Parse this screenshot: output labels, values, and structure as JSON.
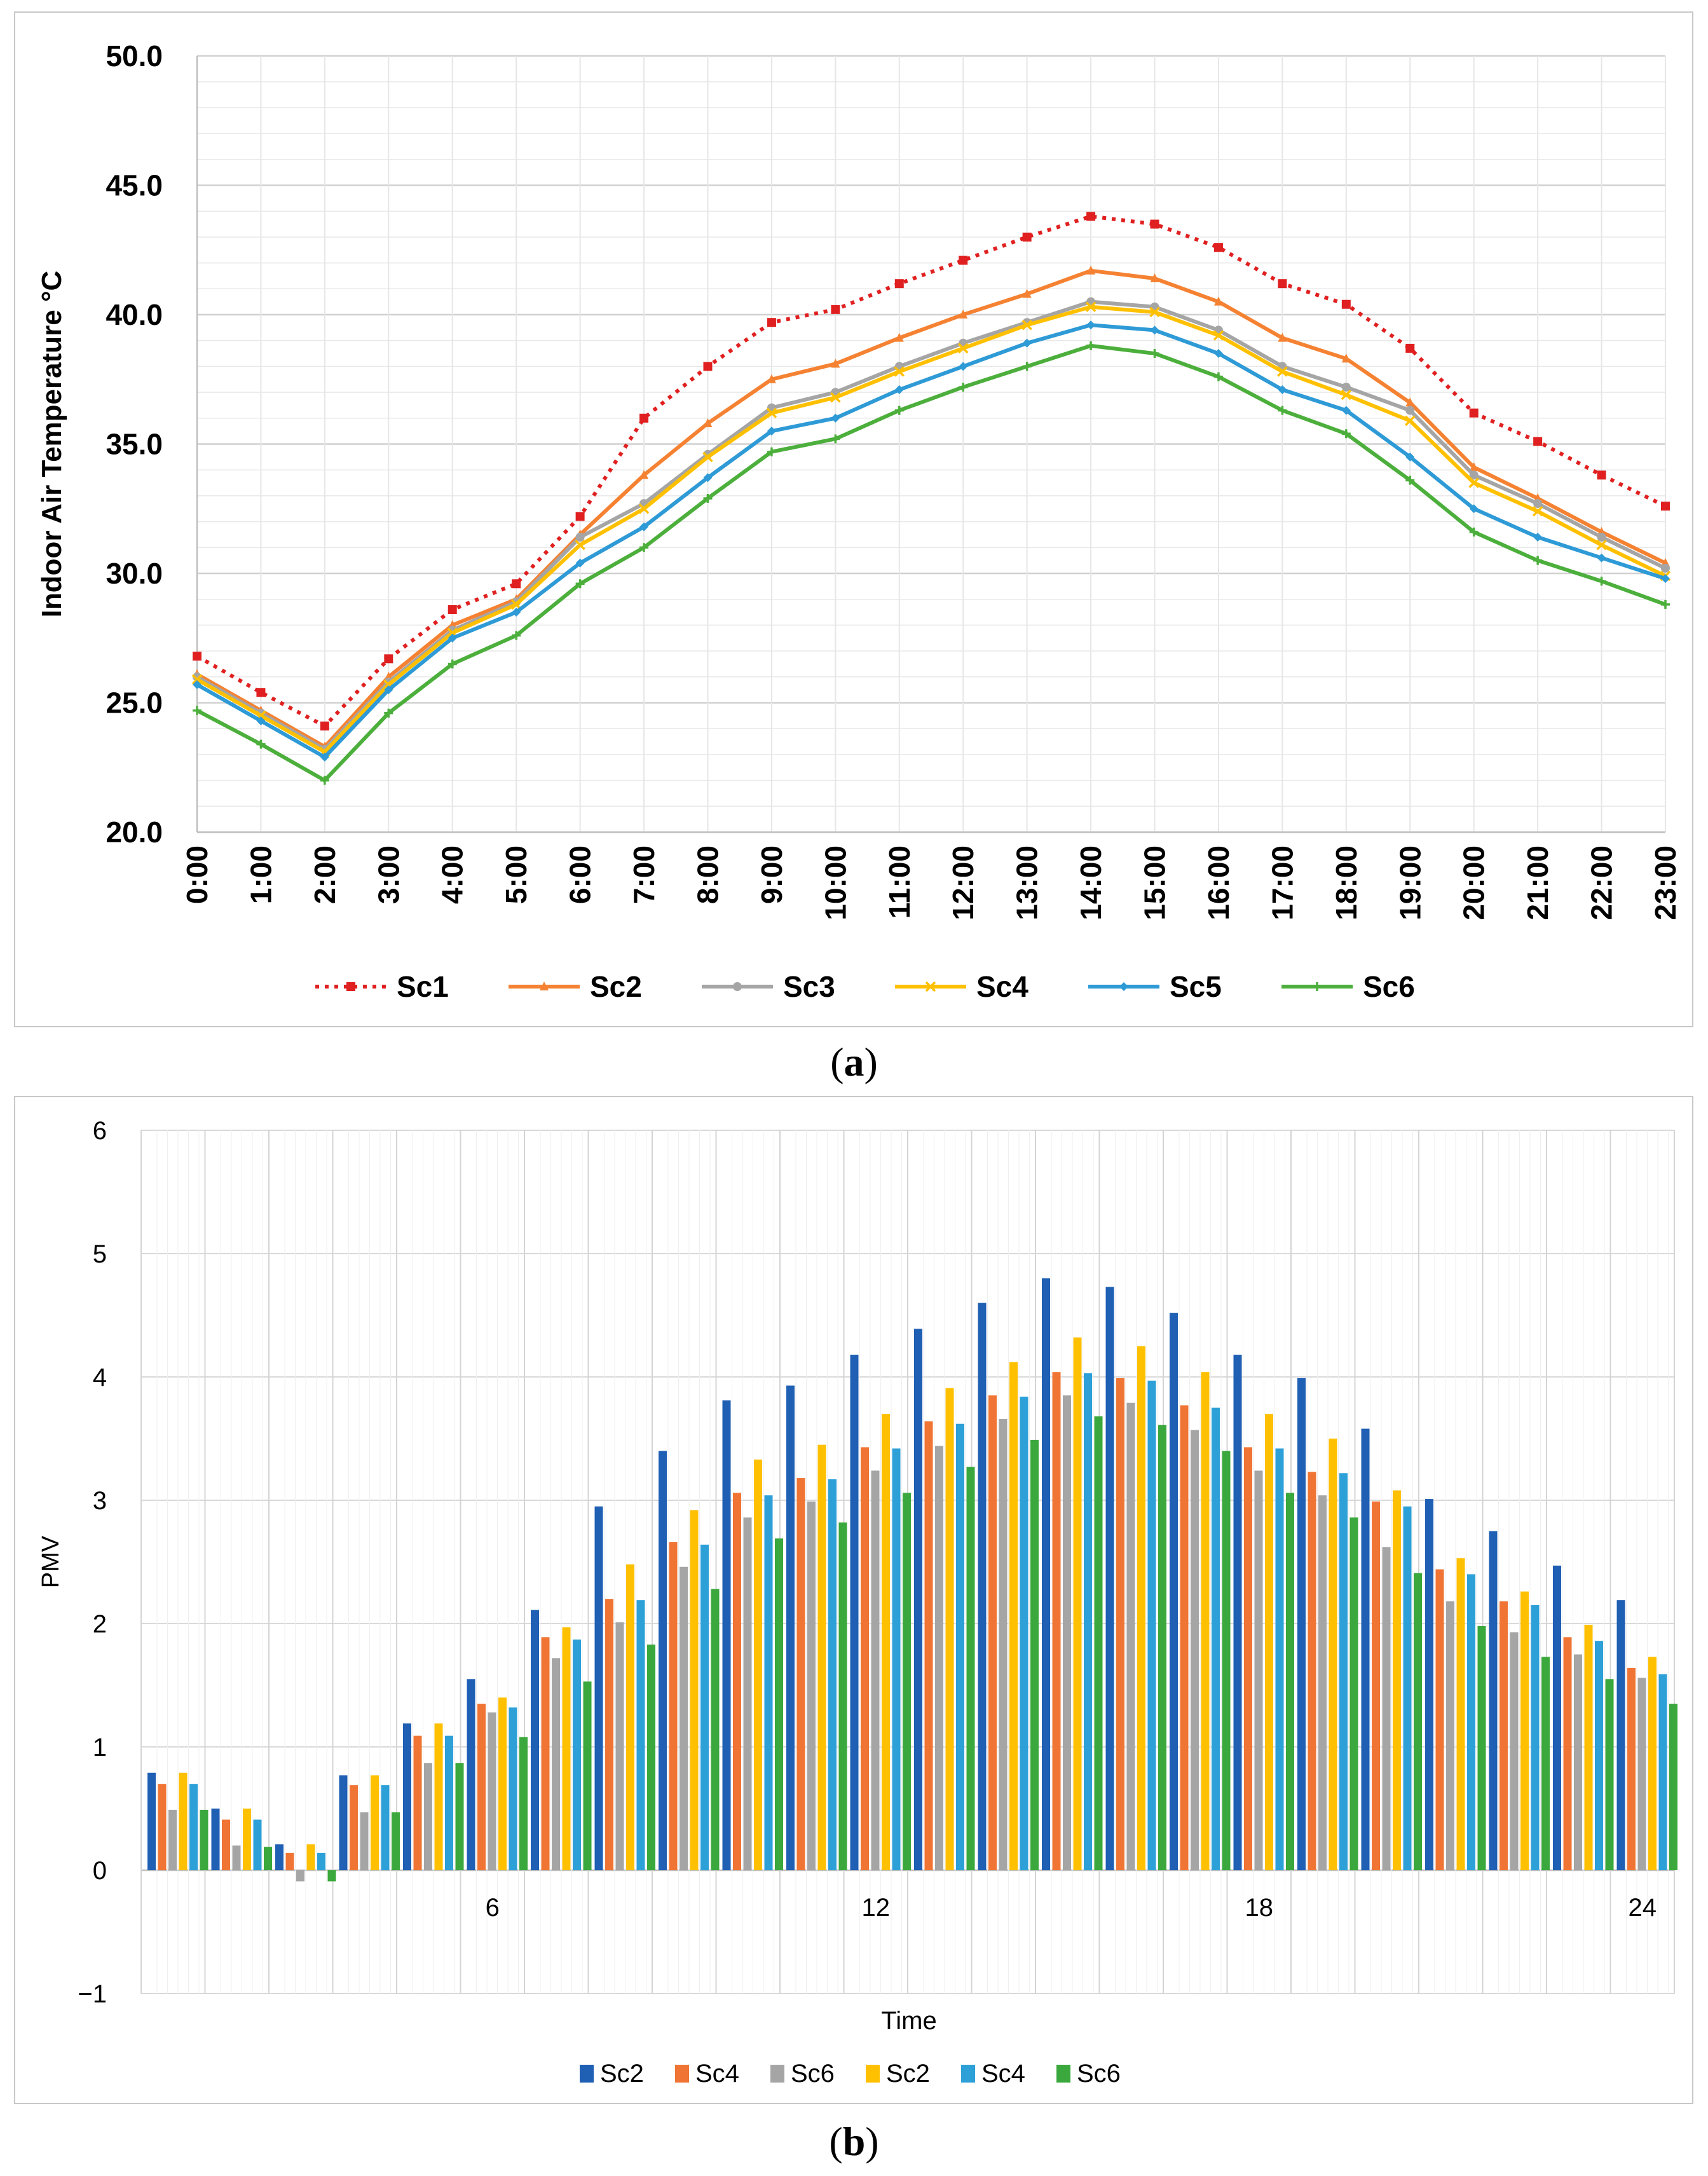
{
  "captions": {
    "a": "a",
    "b": "b"
  },
  "chart_data": [
    {
      "type": "line",
      "title": "",
      "xlabel": "",
      "ylabel": "Indoor Air Temperature °C",
      "ylim": [
        20,
        50
      ],
      "yticks": [
        "20.0",
        "25.0",
        "30.0",
        "35.0",
        "40.0",
        "45.0",
        "50.0"
      ],
      "categories": [
        "0:00",
        "1:00",
        "2:00",
        "3:00",
        "4:00",
        "5:00",
        "6:00",
        "7:00",
        "8:00",
        "9:00",
        "10:00",
        "11:00",
        "12:00",
        "13:00",
        "14:00",
        "15:00",
        "16:00",
        "17:00",
        "18:00",
        "19:00",
        "20:00",
        "21:00",
        "22:00",
        "23:00"
      ],
      "grid": true,
      "legend_position": "bottom",
      "series": [
        {
          "name": "Sc1",
          "color": "#e02020",
          "dashed": true,
          "marker": "square",
          "values": [
            26.8,
            25.4,
            24.1,
            26.7,
            28.6,
            29.6,
            32.2,
            36.0,
            38.0,
            39.7,
            40.2,
            41.2,
            42.1,
            43.0,
            43.8,
            43.5,
            42.6,
            41.2,
            40.4,
            38.7,
            36.2,
            35.1,
            33.8,
            32.6
          ]
        },
        {
          "name": "Sc2",
          "color": "#f58232",
          "dashed": false,
          "marker": "triangle",
          "values": [
            26.1,
            24.7,
            23.3,
            26.0,
            28.0,
            29.0,
            31.5,
            33.8,
            35.8,
            37.5,
            38.1,
            39.1,
            40.0,
            40.8,
            41.7,
            41.4,
            40.5,
            39.1,
            38.3,
            36.6,
            34.1,
            32.9,
            31.6,
            30.4
          ]
        },
        {
          "name": "Sc3",
          "color": "#a5a5a5",
          "dashed": false,
          "marker": "circle",
          "values": [
            26.0,
            24.6,
            23.2,
            25.8,
            27.8,
            28.9,
            31.4,
            32.7,
            34.6,
            36.4,
            37.0,
            38.0,
            38.9,
            39.7,
            40.5,
            40.3,
            39.4,
            38.0,
            37.2,
            36.3,
            33.8,
            32.7,
            31.4,
            30.2
          ]
        },
        {
          "name": "Sc4",
          "color": "#ffc000",
          "dashed": false,
          "marker": "x",
          "values": [
            25.9,
            24.5,
            23.1,
            25.7,
            27.7,
            28.8,
            31.1,
            32.5,
            34.5,
            36.2,
            36.8,
            37.8,
            38.7,
            39.6,
            40.3,
            40.1,
            39.2,
            37.8,
            36.9,
            35.9,
            33.5,
            32.4,
            31.1,
            29.9
          ]
        },
        {
          "name": "Sc5",
          "color": "#2e9ad6",
          "dashed": false,
          "marker": "diamond",
          "values": [
            25.7,
            24.3,
            22.9,
            25.5,
            27.5,
            28.5,
            30.4,
            31.8,
            33.7,
            35.5,
            36.0,
            37.1,
            38.0,
            38.9,
            39.6,
            39.4,
            38.5,
            37.1,
            36.3,
            34.5,
            32.5,
            31.4,
            30.6,
            29.8
          ]
        },
        {
          "name": "Sc6",
          "color": "#4caf3c",
          "dashed": false,
          "marker": "plus",
          "values": [
            24.7,
            23.4,
            22.0,
            24.6,
            26.5,
            27.6,
            29.6,
            31.0,
            32.9,
            34.7,
            35.2,
            36.3,
            37.2,
            38.0,
            38.8,
            38.5,
            37.6,
            36.3,
            35.4,
            33.6,
            31.6,
            30.5,
            29.7,
            28.8
          ]
        }
      ]
    },
    {
      "type": "bar",
      "title": "",
      "xlabel": "Time",
      "ylabel": "PMV",
      "ylim": [
        -1,
        6
      ],
      "yticks": [
        "−1",
        "0",
        "1",
        "2",
        "3",
        "4",
        "5",
        "6"
      ],
      "xtick_labels": [
        {
          "after_group": 6,
          "label": "6"
        },
        {
          "after_group": 12,
          "label": "12"
        },
        {
          "after_group": 18,
          "label": "18"
        },
        {
          "after_group": 24,
          "label": "24"
        }
      ],
      "categories": [
        "1",
        "2",
        "3",
        "4",
        "5",
        "6",
        "7",
        "8",
        "9",
        "10",
        "11",
        "12",
        "13",
        "14",
        "15",
        "16",
        "17",
        "18",
        "19",
        "20",
        "21",
        "22",
        "23",
        "24"
      ],
      "grid": true,
      "legend_position": "bottom",
      "series": [
        {
          "name": "Sc2",
          "color": "#1f5fb4",
          "values": [
            0.79,
            0.5,
            0.21,
            0.77,
            1.19,
            1.55,
            2.11,
            2.95,
            3.4,
            3.81,
            3.93,
            4.18,
            4.39,
            4.6,
            4.8,
            4.73,
            4.52,
            4.18,
            3.99,
            3.58,
            3.01,
            2.75,
            2.47,
            2.19
          ]
        },
        {
          "name": "Sc4",
          "color": "#f07534",
          "values": [
            0.7,
            0.41,
            0.14,
            0.69,
            1.09,
            1.35,
            1.89,
            2.2,
            2.66,
            3.06,
            3.18,
            3.43,
            3.64,
            3.85,
            4.04,
            3.99,
            3.77,
            3.43,
            3.23,
            2.99,
            2.44,
            2.18,
            1.89,
            1.64
          ]
        },
        {
          "name": "Sc6",
          "color": "#a5a5a5",
          "values": [
            0.49,
            0.2,
            -0.09,
            0.47,
            0.87,
            1.28,
            1.72,
            2.01,
            2.46,
            2.86,
            2.99,
            3.24,
            3.44,
            3.66,
            3.85,
            3.79,
            3.57,
            3.24,
            3.04,
            2.62,
            2.18,
            1.93,
            1.75,
            1.56
          ]
        },
        {
          "name": "Sc2",
          "color": "#ffc000",
          "values": [
            0.79,
            0.5,
            0.21,
            0.77,
            1.19,
            1.4,
            1.97,
            2.48,
            2.92,
            3.33,
            3.45,
            3.7,
            3.91,
            4.12,
            4.32,
            4.25,
            4.04,
            3.7,
            3.5,
            3.08,
            2.53,
            2.26,
            1.99,
            1.73
          ]
        },
        {
          "name": "Sc4",
          "color": "#2da0d8",
          "values": [
            0.7,
            0.41,
            0.14,
            0.69,
            1.09,
            1.32,
            1.87,
            2.19,
            2.64,
            3.04,
            3.17,
            3.42,
            3.62,
            3.84,
            4.03,
            3.97,
            3.75,
            3.42,
            3.22,
            2.95,
            2.4,
            2.15,
            1.86,
            1.59
          ]
        },
        {
          "name": "Sc6",
          "color": "#3aa83c",
          "values": [
            0.49,
            0.19,
            -0.09,
            0.47,
            0.87,
            1.08,
            1.53,
            1.83,
            2.28,
            2.69,
            2.82,
            3.06,
            3.27,
            3.49,
            3.68,
            3.61,
            3.4,
            3.06,
            2.86,
            2.41,
            1.98,
            1.73,
            1.55,
            1.35
          ]
        }
      ]
    }
  ]
}
